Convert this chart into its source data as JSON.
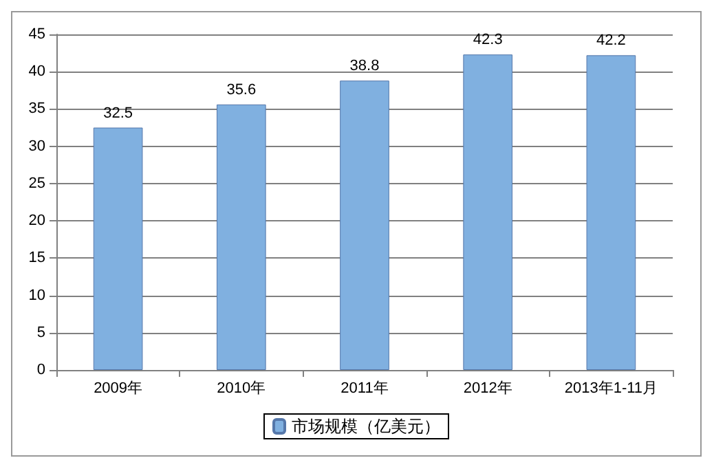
{
  "chart_data": {
    "type": "bar",
    "categories": [
      "2009年",
      "2010年",
      "2011年",
      "2012年",
      "2013年1-11月"
    ],
    "series": [
      {
        "name": "市场规模（亿美元）",
        "color": "#80b0e0",
        "values": [
          32.5,
          35.6,
          38.8,
          42.3,
          42.2
        ]
      }
    ],
    "ylim": [
      0,
      45
    ],
    "yticks": [
      0,
      5,
      10,
      15,
      20,
      25,
      30,
      35,
      40,
      45
    ],
    "grid": "y",
    "legend": "bottom",
    "data_labels": true
  }
}
